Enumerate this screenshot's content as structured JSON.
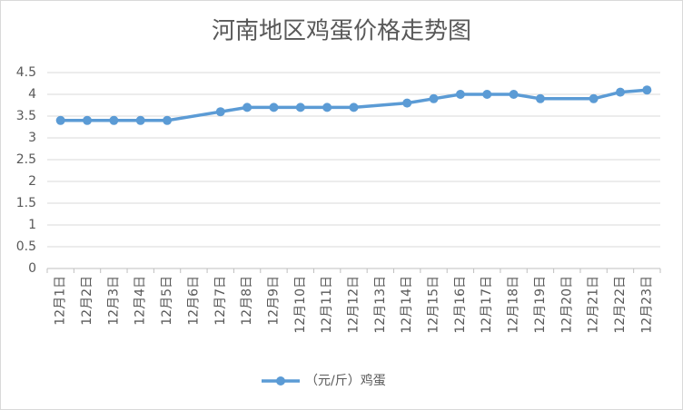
{
  "chart_data": {
    "type": "line",
    "title": "河南地区鸡蛋价格走势图",
    "categories": [
      "12月1日",
      "12月2日",
      "12月3日",
      "12月4日",
      "12月5日",
      "12月6日",
      "12月7日",
      "12月8日",
      "12月9日",
      "12月10日",
      "12月11日",
      "12月12日",
      "12月13日",
      "12月14日",
      "12月15日",
      "12月16日",
      "12月17日",
      "12月18日",
      "12月19日",
      "12月20日",
      "12月21日",
      "12月22日",
      "12月23日"
    ],
    "series": [
      {
        "name": "（元/斤）鸡蛋",
        "color": "#5b9bd5",
        "values": [
          3.4,
          3.4,
          3.4,
          3.4,
          3.4,
          null,
          3.6,
          3.7,
          3.7,
          3.7,
          3.7,
          3.7,
          null,
          3.8,
          3.9,
          4.0,
          4.0,
          4.0,
          3.9,
          null,
          3.9,
          4.05,
          4.1
        ]
      }
    ],
    "span_gaps": true,
    "ylim": [
      0,
      4.5
    ],
    "yticks": [
      0,
      0.5,
      1,
      1.5,
      2,
      2.5,
      3,
      3.5,
      4,
      4.5
    ],
    "grid": true,
    "legend": "bottom"
  }
}
